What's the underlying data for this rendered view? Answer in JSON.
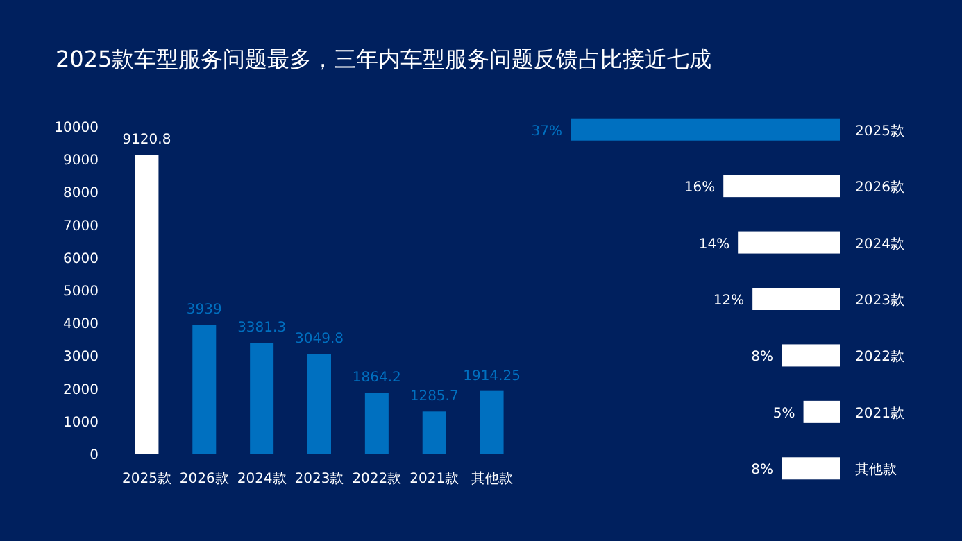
{
  "chart_data": [
    {
      "type": "bar",
      "title": "2025款车型服务问题最多，三年内车型服务问题反馈占比接近七成",
      "categories": [
        "2025款",
        "2026款",
        "2024款",
        "2023款",
        "2022款",
        "2021款",
        "其他款"
      ],
      "values": [
        9120.8,
        3939,
        3381.3,
        3049.8,
        1864.2,
        1285.7,
        1914.25
      ],
      "colors": [
        "#ffffff",
        "#0070c0",
        "#0070c0",
        "#0070c0",
        "#0070c0",
        "#0070c0",
        "#0070c0"
      ],
      "ylim": [
        0,
        10000
      ],
      "yticks": [
        0,
        1000,
        2000,
        3000,
        4000,
        5000,
        6000,
        7000,
        8000,
        9000,
        10000
      ],
      "data_labels": true
    },
    {
      "type": "bar",
      "orientation": "horizontal",
      "categories": [
        "2025款",
        "2026款",
        "2024款",
        "2023款",
        "2022款",
        "2021款",
        "其他款"
      ],
      "values": [
        37,
        16,
        14,
        12,
        8,
        5,
        8
      ],
      "value_labels": [
        "37%",
        "16%",
        "14%",
        "12%",
        "8%",
        "5%",
        "8%"
      ],
      "colors": [
        "#0070c0",
        "#ffffff",
        "#ffffff",
        "#ffffff",
        "#ffffff",
        "#ffffff",
        "#ffffff"
      ]
    }
  ]
}
